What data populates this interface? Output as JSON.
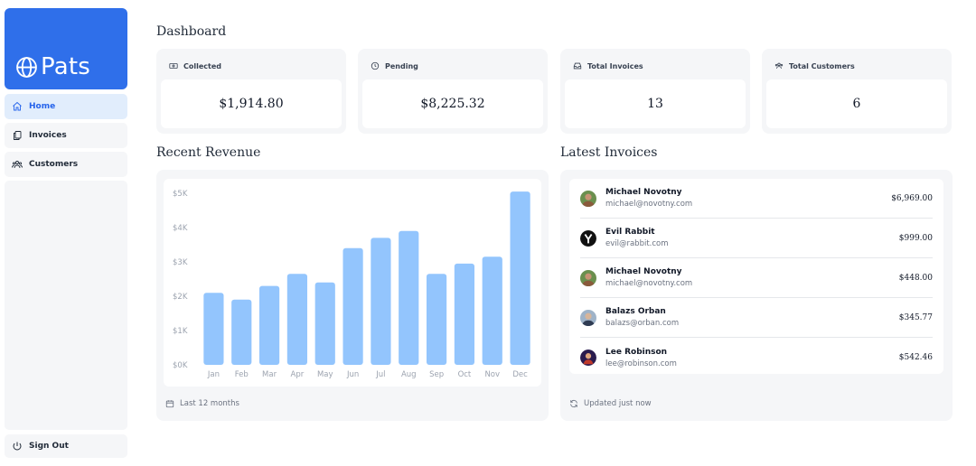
{
  "brand": {
    "name": "Pats",
    "color": "#2f6fea"
  },
  "nav": {
    "items": [
      {
        "label": "Home",
        "icon": "home-icon",
        "active": true
      },
      {
        "label": "Invoices",
        "icon": "documents-icon",
        "active": false
      },
      {
        "label": "Customers",
        "icon": "users-icon",
        "active": false
      }
    ],
    "sign_out": "Sign Out"
  },
  "dashboard": {
    "title": "Dashboard",
    "cards": [
      {
        "label": "Collected",
        "value": "$1,914.80",
        "icon": "banknotes-icon"
      },
      {
        "label": "Pending",
        "value": "$8,225.32",
        "icon": "clock-icon"
      },
      {
        "label": "Total Invoices",
        "value": "13",
        "icon": "inbox-icon"
      },
      {
        "label": "Total Customers",
        "value": "6",
        "icon": "user-group-icon"
      }
    ]
  },
  "revenue": {
    "title": "Recent Revenue",
    "footer": "Last 12 months",
    "bar_color": "#93c5fd"
  },
  "invoices": {
    "title": "Latest Invoices",
    "footer": "Updated just now",
    "rows": [
      {
        "name": "Michael Novotny",
        "email": "michael@novotny.com",
        "amount": "$6,969.00",
        "avatar": "photo-avatar"
      },
      {
        "name": "Evil Rabbit",
        "email": "evil@rabbit.com",
        "amount": "$999.00",
        "avatar": "rabbit-logo-avatar"
      },
      {
        "name": "Michael Novotny",
        "email": "michael@novotny.com",
        "amount": "$448.00",
        "avatar": "photo-avatar"
      },
      {
        "name": "Balazs Orban",
        "email": "balazs@orban.com",
        "amount": "$345.77",
        "avatar": "photo-avatar"
      },
      {
        "name": "Lee Robinson",
        "email": "lee@robinson.com",
        "amount": "$542.46",
        "avatar": "photo-avatar"
      }
    ]
  },
  "chart_data": {
    "type": "bar",
    "categories": [
      "Jan",
      "Feb",
      "Mar",
      "Apr",
      "May",
      "Jun",
      "Jul",
      "Aug",
      "Sep",
      "Oct",
      "Nov",
      "Dec"
    ],
    "values": [
      2100,
      1900,
      2300,
      2650,
      2400,
      3400,
      3700,
      3900,
      2650,
      2950,
      3150,
      5050
    ],
    "ylim": [
      0,
      5000
    ],
    "yticks": [
      "$0K",
      "$1K",
      "$2K",
      "$3K",
      "$4K",
      "$5K"
    ],
    "ytick_values": [
      0,
      1000,
      2000,
      3000,
      4000,
      5000
    ],
    "grid": false
  }
}
